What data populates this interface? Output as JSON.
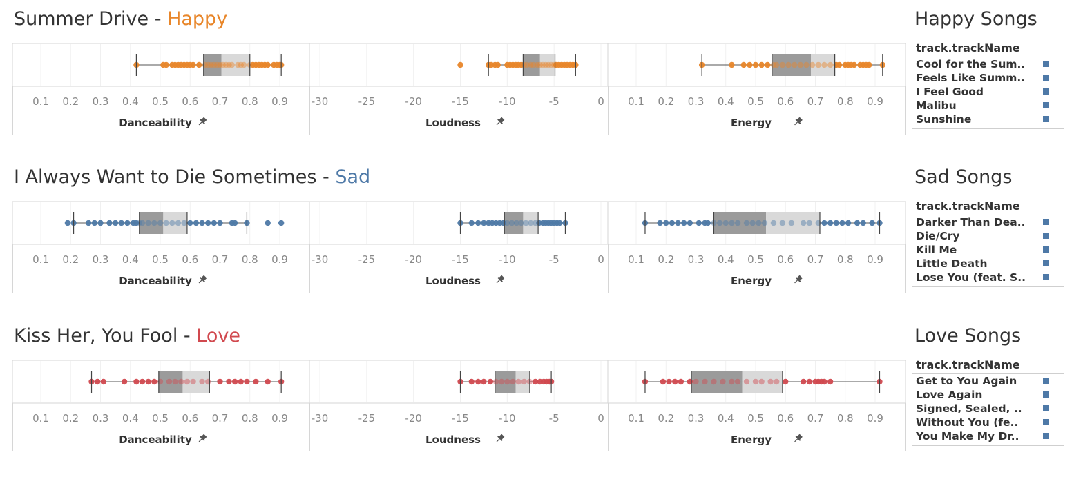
{
  "colors": {
    "happy": "#e8862a",
    "sad": "#4e79a7",
    "love": "#d1494f",
    "box_dark": "#9b9b9b",
    "box_light": "#d9d9d9",
    "swatch": "#4e79a7"
  },
  "axes": [
    {
      "label": "Danceability",
      "ticks": [
        "0.1",
        "0.2",
        "0.3",
        "0.4",
        "0.5",
        "0.6",
        "0.7",
        "0.8",
        "0.9"
      ],
      "range": [
        0,
        1
      ]
    },
    {
      "label": "Loudness",
      "ticks": [
        "-30",
        "-25",
        "-20",
        "-15",
        "-10",
        "-5",
        "0"
      ],
      "range": [
        -30,
        0
      ]
    },
    {
      "label": "Energy",
      "ticks": [
        "0.1",
        "0.2",
        "0.3",
        "0.4",
        "0.5",
        "0.6",
        "0.7",
        "0.8",
        "0.9"
      ],
      "range": [
        0,
        1
      ]
    }
  ],
  "rows": [
    {
      "playlist": "Summer Drive",
      "separator": " - ",
      "mood": "Happy",
      "mood_color": "#e8862a",
      "legend_title": "Happy Songs",
      "legend_header": "track.trackName",
      "legend_items": [
        "Cool for the Sum..",
        "Feels Like Summ..",
        "I Feel Good",
        "Malibu",
        "Sunshine"
      ]
    },
    {
      "playlist": "I Always Want to Die Sometimes",
      "separator": " - ",
      "mood": "Sad",
      "mood_color": "#4e79a7",
      "legend_title": "Sad Songs",
      "legend_header": "track.trackName",
      "legend_items": [
        "Darker Than Dea..",
        "Die/Cry",
        "Kill Me",
        "Little Death",
        "Lose You (feat. S.."
      ]
    },
    {
      "playlist": "Kiss Her, You Fool",
      "separator": " - ",
      "mood": "Love",
      "mood_color": "#d1494f",
      "legend_title": "Love Songs",
      "legend_header": "track.trackName",
      "legend_items": [
        "Get to You Again",
        "Love Again",
        "Signed, Sealed, ..",
        "Without You (fe..",
        "You Make My Dr.."
      ]
    }
  ],
  "chart_data": [
    {
      "type": "boxplot",
      "title": "Summer Drive - Happy",
      "panels": [
        {
          "measure": "Danceability",
          "min": 0.42,
          "q1": 0.645,
          "median": 0.705,
          "q3": 0.8,
          "max": 0.905,
          "points": [
            0.42,
            0.51,
            0.52,
            0.54,
            0.55,
            0.56,
            0.57,
            0.58,
            0.59,
            0.6,
            0.61,
            0.63,
            0.65,
            0.66,
            0.67,
            0.68,
            0.69,
            0.7,
            0.71,
            0.72,
            0.73,
            0.74,
            0.76,
            0.77,
            0.78,
            0.8,
            0.81,
            0.82,
            0.83,
            0.84,
            0.85,
            0.86,
            0.88,
            0.89,
            0.9,
            0.905
          ]
        },
        {
          "measure": "Loudness",
          "min": -12.0,
          "q1": -8.3,
          "median": -6.5,
          "q3": -4.9,
          "max": -2.7,
          "points": [
            -15.0,
            -12.0,
            -11.7,
            -11.3,
            -11.0,
            -10.0,
            -9.7,
            -9.4,
            -9.1,
            -8.8,
            -8.5,
            -8.2,
            -7.9,
            -7.5,
            -7.2,
            -6.8,
            -6.5,
            -6.2,
            -5.9,
            -5.6,
            -5.3,
            -5.0,
            -4.8,
            -4.5,
            -4.2,
            -3.9,
            -3.6,
            -3.3,
            -3.0,
            -2.7
          ]
        },
        {
          "measure": "Energy",
          "min": 0.32,
          "q1": 0.555,
          "median": 0.685,
          "q3": 0.765,
          "max": 0.925,
          "points": [
            0.32,
            0.42,
            0.46,
            0.48,
            0.5,
            0.52,
            0.54,
            0.56,
            0.57,
            0.59,
            0.61,
            0.63,
            0.65,
            0.67,
            0.69,
            0.71,
            0.73,
            0.75,
            0.77,
            0.78,
            0.8,
            0.81,
            0.82,
            0.83,
            0.85,
            0.86,
            0.87,
            0.88,
            0.925
          ]
        }
      ]
    },
    {
      "type": "boxplot",
      "title": "I Always Want to Die Sometimes - Sad",
      "panels": [
        {
          "measure": "Danceability",
          "min": 0.21,
          "q1": 0.43,
          "median": 0.51,
          "q3": 0.59,
          "max": 0.79,
          "points": [
            0.19,
            0.21,
            0.26,
            0.28,
            0.3,
            0.33,
            0.35,
            0.37,
            0.39,
            0.41,
            0.42,
            0.43,
            0.44,
            0.46,
            0.48,
            0.5,
            0.52,
            0.54,
            0.56,
            0.58,
            0.6,
            0.62,
            0.64,
            0.66,
            0.68,
            0.7,
            0.74,
            0.75,
            0.79,
            0.86,
            0.905
          ]
        },
        {
          "measure": "Loudness",
          "min": -15.0,
          "q1": -10.3,
          "median": -8.3,
          "q3": -6.7,
          "max": -3.8,
          "points": [
            -15.0,
            -13.8,
            -13.1,
            -12.5,
            -12.0,
            -11.6,
            -11.2,
            -10.8,
            -10.4,
            -10.0,
            -9.5,
            -9.0,
            -8.5,
            -8.0,
            -7.5,
            -7.0,
            -6.6,
            -6.2,
            -5.9,
            -5.6,
            -5.3,
            -5.0,
            -4.7,
            -4.4,
            -3.8
          ]
        },
        {
          "measure": "Energy",
          "min": 0.13,
          "q1": 0.36,
          "median": 0.535,
          "q3": 0.715,
          "max": 0.915,
          "points": [
            0.13,
            0.18,
            0.2,
            0.22,
            0.24,
            0.26,
            0.28,
            0.31,
            0.33,
            0.34,
            0.36,
            0.38,
            0.4,
            0.42,
            0.44,
            0.47,
            0.49,
            0.51,
            0.53,
            0.56,
            0.59,
            0.62,
            0.66,
            0.68,
            0.71,
            0.73,
            0.75,
            0.77,
            0.79,
            0.81,
            0.84,
            0.86,
            0.89,
            0.915
          ]
        }
      ]
    },
    {
      "type": "boxplot",
      "title": "Kiss Her, You Fool - Love",
      "panels": [
        {
          "measure": "Danceability",
          "min": 0.27,
          "q1": 0.495,
          "median": 0.575,
          "q3": 0.665,
          "max": 0.905,
          "points": [
            0.27,
            0.29,
            0.31,
            0.38,
            0.42,
            0.44,
            0.46,
            0.48,
            0.5,
            0.53,
            0.55,
            0.57,
            0.59,
            0.61,
            0.64,
            0.66,
            0.7,
            0.73,
            0.75,
            0.77,
            0.79,
            0.82,
            0.86,
            0.905
          ]
        },
        {
          "measure": "Loudness",
          "min": -15.0,
          "q1": -11.3,
          "median": -9.1,
          "q3": -7.6,
          "max": -5.3,
          "points": [
            -15.0,
            -13.8,
            -13.1,
            -12.5,
            -11.8,
            -11.2,
            -10.6,
            -10.0,
            -9.4,
            -8.8,
            -8.2,
            -7.6,
            -7.0,
            -6.5,
            -6.1,
            -5.8,
            -5.5,
            -5.3
          ]
        },
        {
          "measure": "Energy",
          "min": 0.13,
          "q1": 0.285,
          "median": 0.455,
          "q3": 0.59,
          "max": 0.915,
          "points": [
            0.13,
            0.19,
            0.21,
            0.23,
            0.25,
            0.28,
            0.3,
            0.33,
            0.36,
            0.39,
            0.42,
            0.44,
            0.47,
            0.5,
            0.52,
            0.55,
            0.57,
            0.6,
            0.66,
            0.68,
            0.7,
            0.71,
            0.72,
            0.73,
            0.75,
            0.915
          ]
        }
      ]
    }
  ]
}
